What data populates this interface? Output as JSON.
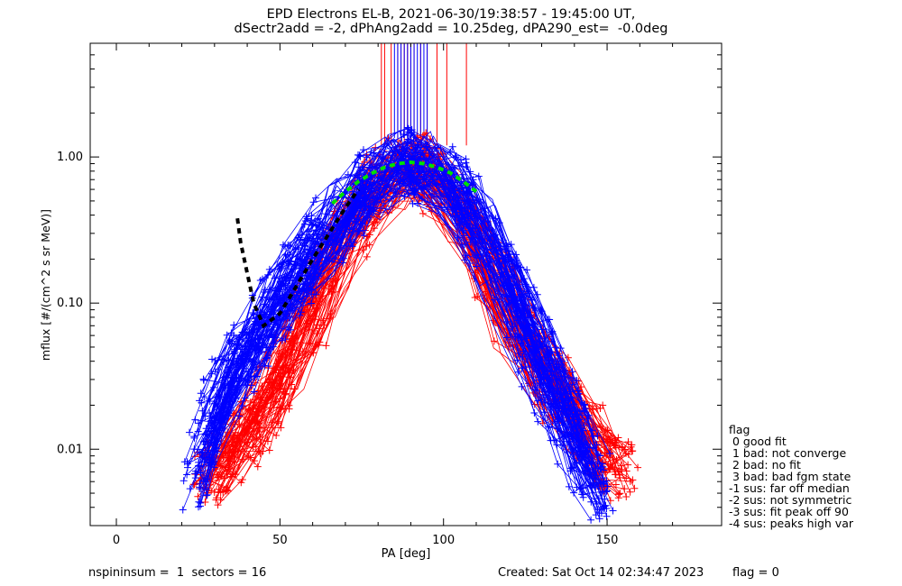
{
  "header": {
    "title_line1": "EPD Electrons EL-B, 2021-06-30/19:38:57 - 19:45:00 UT,",
    "title_line2": "dSectr2add = -2, dPhAng2add = 10.25deg, dPA290_est=  -0.0deg"
  },
  "footer": {
    "left": "nspininsum =  1  sectors = 16",
    "created": "Created: Sat Oct 14 02:34:47 2023",
    "flag": "flag = 0"
  },
  "legend": {
    "title": "flag",
    "items": [
      " 0 good fit",
      " 1 bad: not converge",
      " 2 bad: no fit",
      " 3 bad: bad fgm state",
      "-1 sus: far off median",
      "-2 sus: not symmetric",
      "-3 sus: fit peak off 90",
      "-4 sus: peaks high var"
    ]
  },
  "colors": {
    "red": "#ff0000",
    "blue": "#0000ff",
    "fit": "#00e000",
    "fit_dots": "#000000",
    "axes": "#000000"
  },
  "chart_data": {
    "type": "line",
    "xlabel": "PA [deg]",
    "ylabel": "mflux [#/(cm^2 s sr MeV)]",
    "xlim": [
      -8,
      185
    ],
    "ylim": [
      0.003,
      6.0
    ],
    "yscale": "log",
    "xticks": [
      0,
      50,
      100,
      150
    ],
    "xtick_labels": [
      "0",
      "50",
      "100",
      "150"
    ],
    "yticks": [
      0.01,
      0.1,
      1.0
    ],
    "ytick_labels": [
      "0.01",
      "0.10",
      "1.00"
    ],
    "series": [
      {
        "color": "red",
        "profile_x": [
          25,
          40,
          55,
          70,
          80,
          90,
          100,
          110,
          120,
          135,
          150,
          158
        ],
        "profile_y": [
          0.006,
          0.012,
          0.05,
          0.3,
          0.65,
          0.9,
          0.62,
          0.28,
          0.08,
          0.025,
          0.008,
          0.007
        ],
        "curves": 70
      },
      {
        "color": "blue",
        "profile_x": [
          22,
          30,
          45,
          60,
          75,
          90,
          105,
          120,
          135,
          145,
          150
        ],
        "profile_y": [
          0.006,
          0.02,
          0.08,
          0.22,
          0.6,
          1.0,
          0.55,
          0.12,
          0.02,
          0.007,
          0.005
        ],
        "curves": 90
      },
      {
        "name": "fit",
        "color": "fit",
        "x": [
          66,
          70,
          74,
          78,
          82,
          86,
          90,
          94,
          98,
          102,
          106,
          110
        ],
        "y": [
          0.48,
          0.58,
          0.68,
          0.77,
          0.85,
          0.9,
          0.92,
          0.9,
          0.85,
          0.78,
          0.68,
          0.58
        ]
      },
      {
        "name": "fit-tail",
        "color": "fit_dots",
        "x": [
          37,
          38,
          40,
          42,
          45,
          50,
          55,
          60,
          65,
          70,
          74
        ],
        "y": [
          0.38,
          0.26,
          0.16,
          0.1,
          0.07,
          0.085,
          0.13,
          0.2,
          0.3,
          0.45,
          0.6
        ]
      }
    ],
    "vertical_lines": {
      "red": [
        81,
        82,
        84,
        86,
        87,
        88,
        89,
        90,
        91,
        93,
        95,
        98,
        101,
        107
      ],
      "blue": [
        85,
        86,
        87,
        88,
        89,
        90,
        91,
        92,
        93,
        94,
        95
      ],
      "ymin": 1.2
    }
  }
}
